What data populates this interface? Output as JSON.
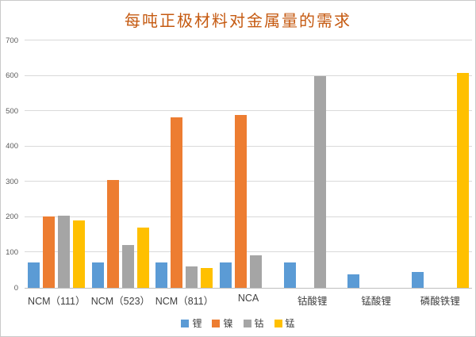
{
  "chart_data": {
    "type": "bar",
    "title": "每吨正极材料对金属量的需求",
    "categories": [
      "NCM（111）",
      "NCM（523）",
      "NCM（811）",
      "NCA",
      "钴酸锂",
      "锰酸锂",
      "磷酸铁锂"
    ],
    "series": [
      {
        "name": "锂",
        "color": "#5B9BD5",
        "values": [
          72,
          72,
          72,
          72,
          71,
          39,
          44
        ]
      },
      {
        "name": "镍",
        "color": "#ED7D31",
        "values": [
          203,
          305,
          483,
          489,
          0,
          0,
          0
        ]
      },
      {
        "name": "钴",
        "color": "#A5A5A5",
        "values": [
          205,
          122,
          61,
          92,
          600,
          0,
          0
        ]
      },
      {
        "name": "锰",
        "color": "#FFC000",
        "values": [
          190,
          170,
          56,
          0,
          0,
          0,
          608
        ]
      }
    ],
    "xlabel": "",
    "ylabel": "",
    "ylim": [
      0,
      700
    ],
    "yticks": [
      0,
      100,
      200,
      300,
      400,
      500,
      600,
      700
    ],
    "grid": true,
    "legend_position": "bottom"
  },
  "colors": {
    "title_text": "#C55A11",
    "axis_tick_text": "#595959",
    "category_text": "#404040",
    "gridline": "#D9D9D9",
    "axis_line": "#BFBFBF",
    "frame_border": "#C9C9C9",
    "background": "#FFFFFF"
  }
}
